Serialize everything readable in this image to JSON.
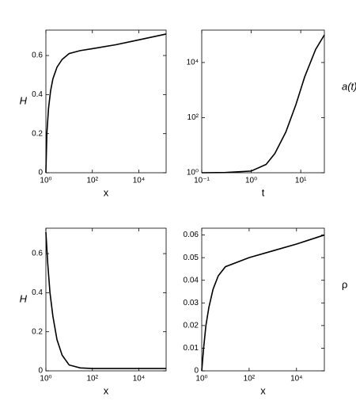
{
  "chart_data": [
    {
      "type": "line",
      "xlabel": "x",
      "ylabel": "H",
      "ylabel_side": "left",
      "ylabel_style": "italic",
      "xscale": "log",
      "yscale": "linear",
      "color": "#000000",
      "xlim": [
        1,
        150000
      ],
      "ylim": [
        0,
        0.73
      ],
      "xticks": [
        {
          "value": 1,
          "label": "10⁰"
        },
        {
          "value": 100,
          "label": "10²"
        },
        {
          "value": 10000,
          "label": "10⁴"
        }
      ],
      "yticks": [
        0,
        0.2,
        0.4,
        0.6
      ],
      "x": [
        1,
        1.1,
        1.3,
        1.6,
        2,
        3,
        5,
        10,
        30,
        100,
        1000,
        10000,
        150000
      ],
      "values": [
        0,
        0.2,
        0.33,
        0.42,
        0.48,
        0.54,
        0.58,
        0.61,
        0.625,
        0.635,
        0.655,
        0.68,
        0.71
      ]
    },
    {
      "type": "line",
      "xlabel": "t",
      "ylabel": "a(t)",
      "ylabel_side": "right",
      "ylabel_style": "italic",
      "xscale": "log",
      "yscale": "log",
      "color": "#000000",
      "xlim": [
        0.1,
        30
      ],
      "ylim": [
        1,
        150000
      ],
      "xticks": [
        {
          "value": 0.1,
          "label": "10⁻¹"
        },
        {
          "value": 1,
          "label": "10⁰"
        },
        {
          "value": 10,
          "label": "10¹"
        }
      ],
      "yticks": [
        {
          "value": 1,
          "label": "10⁰"
        },
        {
          "value": 100,
          "label": "10²"
        },
        {
          "value": 10000,
          "label": "10⁴"
        }
      ],
      "x": [
        0.1,
        0.3,
        1,
        2,
        3,
        5,
        8,
        12,
        20,
        30
      ],
      "values": [
        1,
        1.02,
        1.15,
        2,
        5,
        30,
        300,
        3000,
        30000,
        100000
      ]
    },
    {
      "type": "line",
      "xlabel": "x",
      "ylabel": "H",
      "ylabel_side": "left",
      "ylabel_style": "italic",
      "xscale": "log",
      "yscale": "linear",
      "color": "#000000",
      "xlim": [
        1,
        150000
      ],
      "ylim": [
        0,
        0.73
      ],
      "xticks": [
        {
          "value": 1,
          "label": "10⁰"
        },
        {
          "value": 100,
          "label": "10²"
        },
        {
          "value": 10000,
          "label": "10⁴"
        }
      ],
      "yticks": [
        0,
        0.2,
        0.4,
        0.6
      ],
      "x": [
        1,
        1.2,
        1.5,
        2,
        3,
        5,
        10,
        30,
        100,
        150000
      ],
      "values": [
        0.71,
        0.55,
        0.4,
        0.28,
        0.16,
        0.08,
        0.03,
        0.015,
        0.012,
        0.012
      ]
    },
    {
      "type": "line",
      "xlabel": "x",
      "ylabel": "ρ",
      "ylabel_side": "right",
      "ylabel_style": "normal",
      "xscale": "log",
      "yscale": "linear",
      "color": "#000000",
      "xlim": [
        1,
        150000
      ],
      "ylim": [
        0,
        0.063
      ],
      "xticks": [
        {
          "value": 1,
          "label": "10⁰"
        },
        {
          "value": 100,
          "label": "10²"
        },
        {
          "value": 10000,
          "label": "10⁴"
        }
      ],
      "yticks": [
        0,
        0.01,
        0.02,
        0.03,
        0.04,
        0.05,
        0.06
      ],
      "x": [
        1,
        1.2,
        1.5,
        2,
        3,
        5,
        10,
        100,
        1000,
        10000,
        150000
      ],
      "values": [
        0,
        0.01,
        0.02,
        0.028,
        0.036,
        0.042,
        0.046,
        0.05,
        0.053,
        0.056,
        0.06
      ]
    }
  ]
}
